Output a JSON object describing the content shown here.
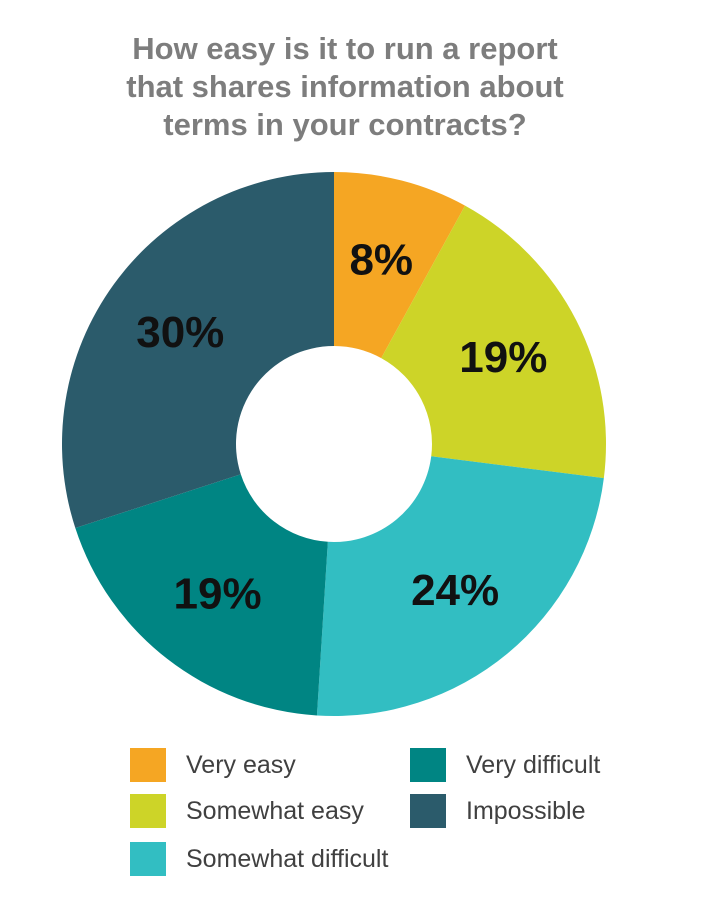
{
  "chart_data": {
    "type": "pie",
    "variant": "donut",
    "title_lines": [
      "How easy is it to run a report",
      "that shares information about",
      "terms in your contracts?"
    ],
    "slices": [
      {
        "name": "Very easy",
        "value": 8,
        "label": "8%",
        "color": "#f5a623"
      },
      {
        "name": "Somewhat easy",
        "value": 19,
        "label": "19%",
        "color": "#cdd428"
      },
      {
        "name": "Somewhat difficult",
        "value": 24,
        "label": "24%",
        "color": "#32bec2"
      },
      {
        "name": "Very difficult",
        "value": 19,
        "label": "19%",
        "color": "#008583"
      },
      {
        "name": "Impossible",
        "value": 30,
        "label": "30%",
        "color": "#2b5b6b"
      }
    ],
    "legend_position": "bottom"
  }
}
